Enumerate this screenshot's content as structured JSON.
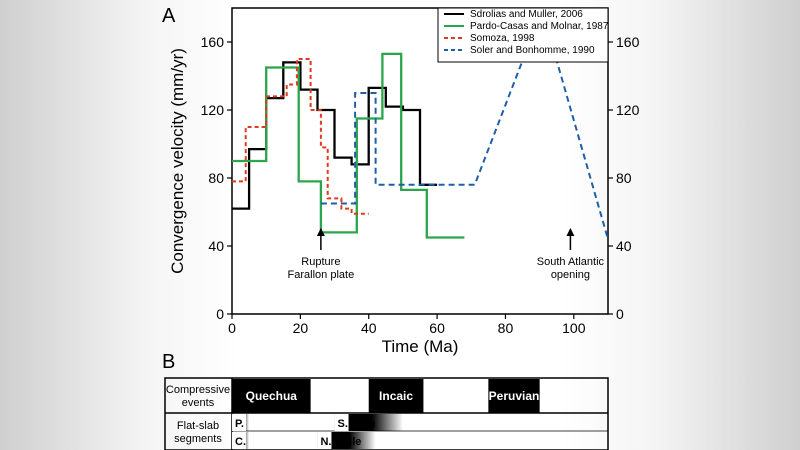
{
  "panel_a_label": "A",
  "panel_b_label": "B",
  "chart_data": {
    "type": "line",
    "xlabel": "Time (Ma)",
    "ylabel": "Convergence velocity (mm/yr)",
    "xlim": [
      0,
      110
    ],
    "ylim": [
      0,
      180
    ],
    "xticks": [
      0,
      20,
      40,
      60,
      80,
      100
    ],
    "yticks": [
      0,
      40,
      80,
      120,
      160
    ],
    "legend_position": "top-right",
    "grid": false,
    "series": [
      {
        "name": "Sdrolias and Muller, 2006",
        "color": "#000000",
        "style": "solid",
        "x": [
          0,
          5,
          5,
          10,
          10,
          15,
          15,
          20,
          20,
          25,
          25,
          30,
          30,
          35,
          35,
          40,
          40,
          45,
          45,
          50,
          50,
          55,
          55,
          60
        ],
        "y": [
          62,
          62,
          97,
          97,
          127,
          127,
          148,
          148,
          132,
          132,
          120,
          120,
          92,
          92,
          88,
          88,
          133,
          133,
          122,
          122,
          120,
          120,
          76,
          76
        ]
      },
      {
        "name": "Pardo-Casas and Molnar, 1987",
        "color": "#2aa54a",
        "style": "solid",
        "x": [
          0,
          10,
          10,
          19.5,
          19.5,
          26,
          26,
          36.5,
          36.5,
          44,
          44,
          49.5,
          49.5,
          57,
          57,
          68
        ],
        "y": [
          90,
          90,
          145,
          145,
          78,
          78,
          48,
          48,
          115,
          115,
          153,
          153,
          73,
          73,
          45,
          45
        ]
      },
      {
        "name": "Somoza, 1998",
        "color": "#e03a1a",
        "style": "dashed",
        "x": [
          0,
          4,
          4,
          10,
          10,
          16,
          16,
          19,
          19,
          23,
          23,
          26,
          26,
          28,
          28,
          32,
          32,
          35,
          35,
          40
        ],
        "y": [
          78,
          78,
          110,
          110,
          128,
          128,
          135,
          135,
          150,
          150,
          120,
          120,
          98,
          98,
          68,
          68,
          62,
          62,
          59,
          59
        ]
      },
      {
        "name": "Soler and Bonhomme, 1990",
        "color": "#1f5fa8",
        "style": "dashed",
        "x": [
          26,
          36,
          36,
          42,
          42,
          44,
          44,
          71,
          85,
          95,
          110
        ],
        "y": [
          65,
          65,
          130,
          130,
          76,
          76,
          76,
          76,
          149,
          149,
          44
        ]
      }
    ],
    "annotations": [
      {
        "x": 26,
        "lines": [
          "Rupture",
          "Farallon plate"
        ]
      },
      {
        "x": 99,
        "lines": [
          "South Atlantic",
          "opening"
        ]
      }
    ]
  },
  "panel_b": {
    "xlim": [
      0,
      110
    ],
    "row_labels": [
      [
        "Compressive",
        "events"
      ],
      [
        "Flat-slab",
        "segments"
      ]
    ],
    "compressive_events": [
      {
        "label": "Quechua",
        "start": 0,
        "end": 23
      },
      {
        "label": "Incaic",
        "start": 40,
        "end": 56
      },
      {
        "label": "Peruvian",
        "start": 75,
        "end": 90
      }
    ],
    "flat_slab_top": [
      {
        "label": "P.",
        "start": 0,
        "end": 5
      },
      {
        "label": "S. Peru",
        "start": 30,
        "end": 50
      }
    ],
    "flat_slab_bottom": [
      {
        "label": "C.",
        "start": 0,
        "end": 5
      },
      {
        "label": "N. Chile",
        "start": 25,
        "end": 42
      }
    ]
  }
}
